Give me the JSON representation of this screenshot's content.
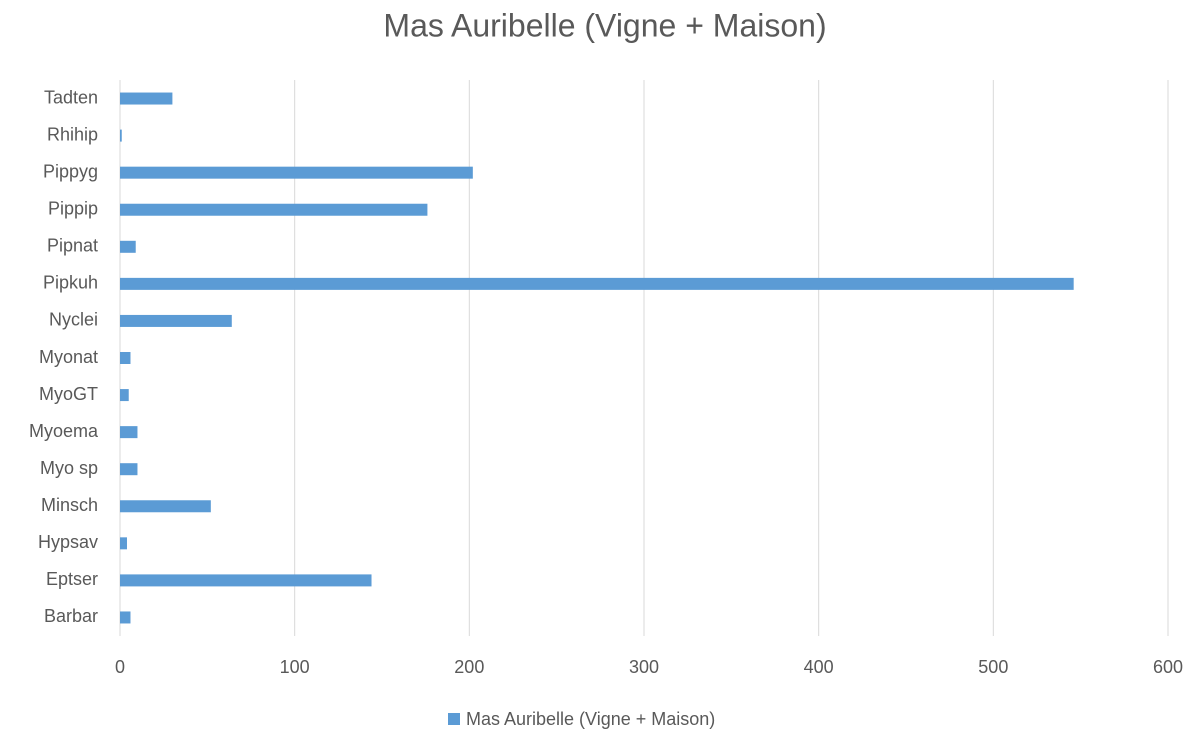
{
  "chart_data": {
    "type": "bar",
    "orientation": "horizontal",
    "title": "Mas Auribelle (Vigne + Maison)",
    "categories": [
      "Barbar",
      "Eptser",
      "Hypsav",
      "Minsch",
      "Myo sp",
      "Myoema",
      "MyoGT",
      "Myonat",
      "Nyclei",
      "Pipkuh",
      "Pipnat",
      "Pippip",
      "Pippyg",
      "Rhihip",
      "Tadten"
    ],
    "series": [
      {
        "name": "Mas Auribelle (Vigne + Maison)",
        "color": "#5b9bd5",
        "values": [
          6,
          144,
          4,
          52,
          10,
          10,
          5,
          6,
          64,
          546,
          9,
          176,
          202,
          1,
          30
        ]
      }
    ],
    "xlim": [
      0,
      600
    ],
    "xticks": [
      0,
      100,
      200,
      300,
      400,
      500,
      600
    ],
    "grid": true,
    "legend": "bottom"
  }
}
